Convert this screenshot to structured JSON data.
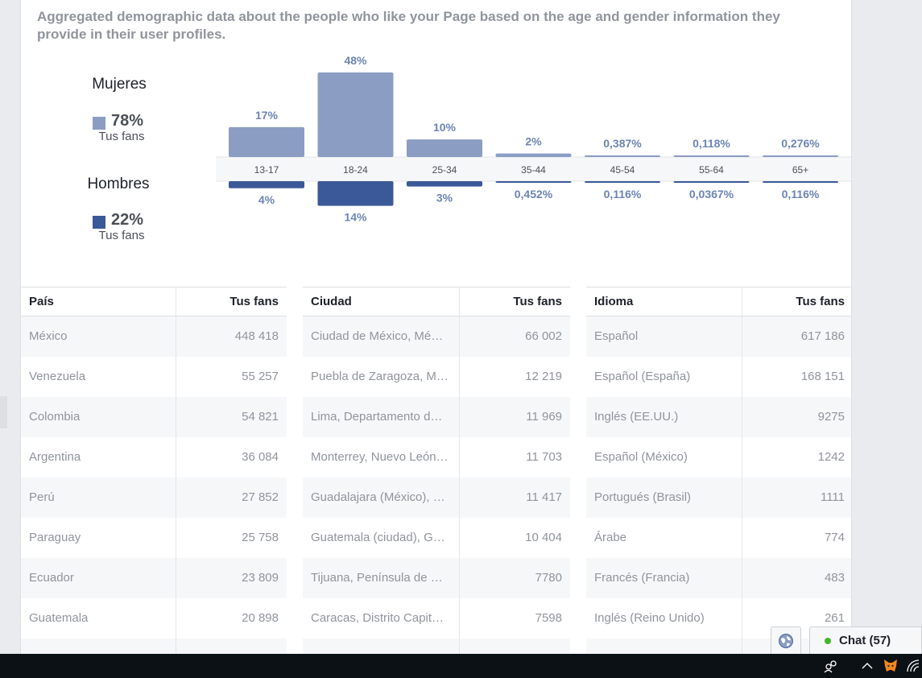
{
  "description": "Aggregated demographic data about the people who like your Page based on the age and gender information they provide in their user profiles.",
  "legend": {
    "women": {
      "title": "Mujeres",
      "percent": "78%",
      "sub": "Tus fans",
      "color": "#8b9dc3"
    },
    "men": {
      "title": "Hombres",
      "percent": "22%",
      "sub": "Tus fans",
      "color": "#3b5998"
    }
  },
  "chart_data": {
    "type": "bar",
    "categories": [
      "13-17",
      "18-24",
      "25-34",
      "35-44",
      "45-54",
      "55-64",
      "65+"
    ],
    "series": [
      {
        "name": "Mujeres",
        "values": [
          17,
          48,
          10,
          2,
          0.387,
          0.118,
          0.276
        ],
        "labels": [
          "17%",
          "48%",
          "10%",
          "2%",
          "0,387%",
          "0,118%",
          "0,276%"
        ],
        "color": "#8b9dc3"
      },
      {
        "name": "Hombres",
        "values": [
          4,
          14,
          3,
          0.452,
          0.116,
          0.0367,
          0.116
        ],
        "labels": [
          "4%",
          "14%",
          "3%",
          "0,452%",
          "0,116%",
          "0,0367%",
          "0,116%"
        ],
        "color": "#3b5998"
      }
    ]
  },
  "tables": [
    {
      "col1": "País",
      "col2": "Tus fans",
      "rows": [
        [
          "México",
          "448 418"
        ],
        [
          "Venezuela",
          "55 257"
        ],
        [
          "Colombia",
          "54 821"
        ],
        [
          "Argentina",
          "36 084"
        ],
        [
          "Perú",
          "27 852"
        ],
        [
          "Paraguay",
          "25 758"
        ],
        [
          "Ecuador",
          "23 809"
        ],
        [
          "Guatemala",
          "20 898"
        ]
      ]
    },
    {
      "col1": "Ciudad",
      "col2": "Tus fans",
      "rows": [
        [
          "Ciudad de México, Mé…",
          "66 002"
        ],
        [
          "Puebla de Zaragoza, M…",
          "12 219"
        ],
        [
          "Lima, Departamento d…",
          "11 969"
        ],
        [
          "Monterrey, Nuevo León…",
          "11 703"
        ],
        [
          "Guadalajara (México), …",
          "11 417"
        ],
        [
          "Guatemala (ciudad), G…",
          "10 404"
        ],
        [
          "Tijuana, Península de …",
          "7780"
        ],
        [
          "Caracas, Distrito Capit…",
          "7598"
        ]
      ]
    },
    {
      "col1": "Idioma",
      "col2": "Tus fans",
      "rows": [
        [
          "Español",
          "617 186"
        ],
        [
          "Español (España)",
          "168 151"
        ],
        [
          "Inglés (EE.UU.)",
          "9275"
        ],
        [
          "Español (México)",
          "1242"
        ],
        [
          "Portugués (Brasil)",
          "1111"
        ],
        [
          "Árabe",
          "774"
        ],
        [
          "Francés (Francia)",
          "483"
        ],
        [
          "Inglés (Reino Unido)",
          "261"
        ]
      ]
    }
  ],
  "chat": {
    "label": "Chat (57)"
  },
  "icons": {
    "globe": "globe-icon",
    "people": "people-icon",
    "chevron": "chevron-up-icon",
    "fox": "metamask-fox-icon",
    "wifi": "wifi-icon"
  }
}
